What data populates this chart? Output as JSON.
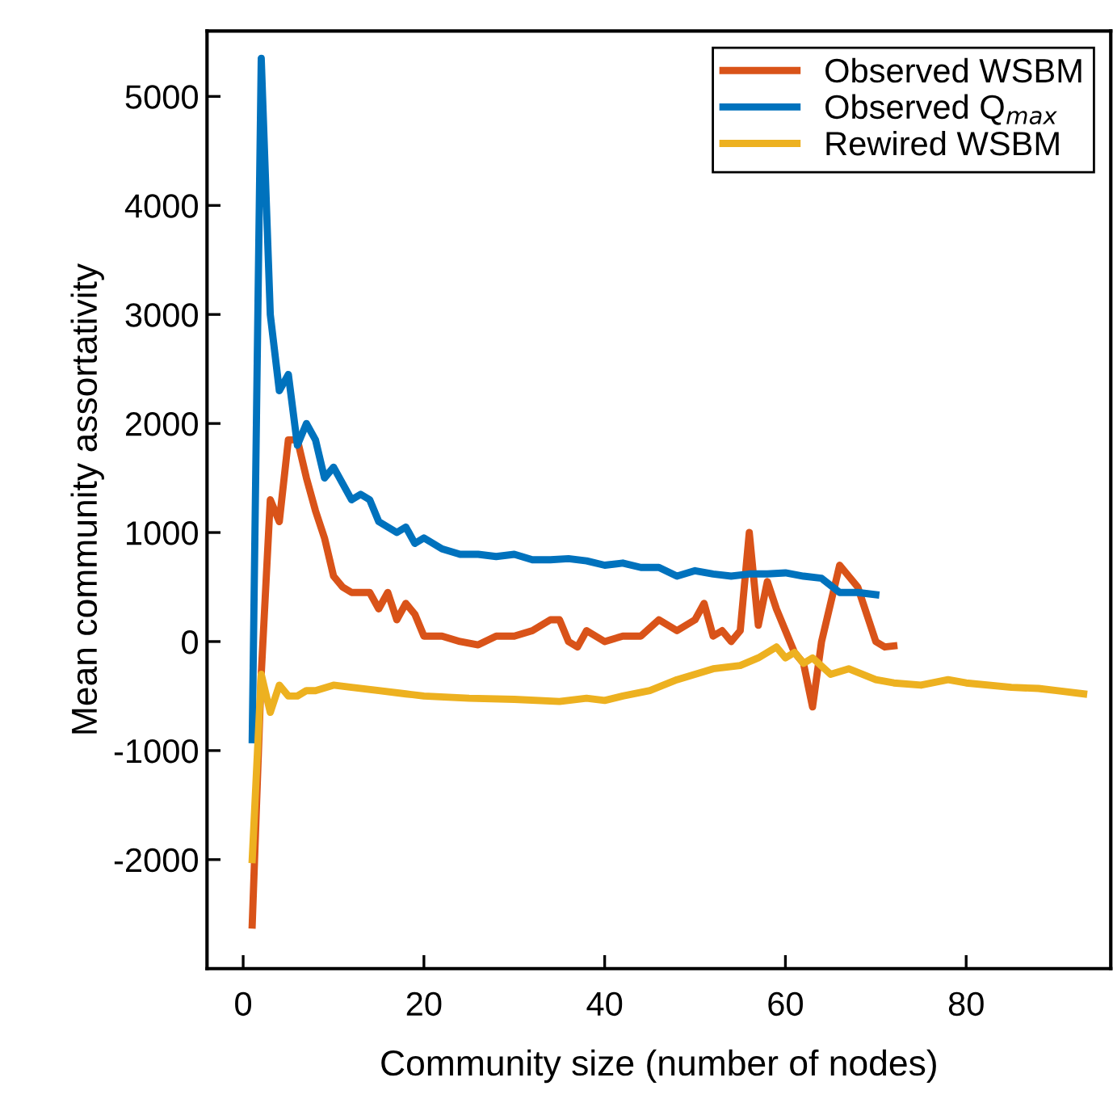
{
  "chart_data": {
    "type": "line",
    "xlabel": "Community size (number of nodes)",
    "ylabel": "Mean community assortativity",
    "xlim": [
      -4,
      96
    ],
    "xticks": [
      0,
      20,
      40,
      60,
      80
    ],
    "ylim": [
      -3000,
      5600
    ],
    "yticks": [
      -2000,
      -1000,
      0,
      1000,
      2000,
      3000,
      4000,
      5000
    ],
    "grid": false,
    "legend": "top right",
    "marker": "none",
    "line_style": "solid",
    "series": [
      {
        "name": "Observed WSBM",
        "color": "#d95319",
        "x": [
          1,
          2,
          3,
          4,
          5,
          6,
          7,
          8,
          9,
          10,
          11,
          12,
          13,
          14,
          15,
          16,
          17,
          18,
          19,
          20,
          22,
          24,
          26,
          28,
          30,
          32,
          34,
          35,
          36,
          37,
          38,
          40,
          42,
          44,
          46,
          47,
          48,
          50,
          51,
          52,
          53,
          54,
          55,
          56,
          57,
          58,
          59,
          60,
          61,
          62,
          63,
          64,
          66,
          68,
          70,
          71,
          72
        ],
        "values": [
          -2600,
          -300,
          1300,
          1100,
          1850,
          1850,
          1500,
          1200,
          950,
          600,
          500,
          450,
          450,
          450,
          300,
          450,
          200,
          350,
          250,
          50,
          50,
          0,
          -30,
          50,
          50,
          100,
          200,
          200,
          0,
          -50,
          100,
          0,
          50,
          50,
          200,
          150,
          100,
          200,
          350,
          50,
          100,
          0,
          100,
          1000,
          150,
          550,
          300,
          100,
          -100,
          -200,
          -600,
          0,
          700,
          500,
          0,
          -50,
          -40
        ]
      },
      {
        "name": "Observed Q$_{max}$",
        "color": "#0072bd",
        "x": [
          1,
          2,
          3,
          4,
          5,
          6,
          7,
          8,
          9,
          10,
          11,
          12,
          13,
          14,
          15,
          16,
          17,
          18,
          19,
          20,
          22,
          24,
          26,
          28,
          30,
          32,
          34,
          36,
          38,
          40,
          42,
          44,
          46,
          48,
          50,
          52,
          54,
          56,
          58,
          60,
          62,
          64,
          66,
          68,
          70
        ],
        "values": [
          -900,
          5350,
          3000,
          2300,
          2450,
          1800,
          2000,
          1850,
          1500,
          1600,
          1450,
          1300,
          1350,
          1300,
          1100,
          1050,
          1000,
          1050,
          900,
          950,
          850,
          800,
          800,
          780,
          800,
          750,
          750,
          760,
          740,
          700,
          720,
          680,
          680,
          600,
          650,
          620,
          600,
          620,
          620,
          630,
          600,
          580,
          450,
          450,
          430
        ]
      },
      {
        "name": "Rewired WSBM",
        "color": "#edb120",
        "x": [
          1,
          2,
          3,
          4,
          5,
          6,
          7,
          8,
          10,
          12,
          15,
          18,
          20,
          25,
          30,
          35,
          38,
          40,
          42,
          45,
          48,
          50,
          52,
          55,
          57,
          58,
          59,
          60,
          61,
          62,
          63,
          65,
          67,
          70,
          72,
          75,
          78,
          80,
          85,
          88,
          90,
          93
        ],
        "values": [
          -2000,
          -300,
          -650,
          -400,
          -500,
          -500,
          -450,
          -450,
          -400,
          -420,
          -450,
          -480,
          -500,
          -520,
          -530,
          -550,
          -520,
          -540,
          -500,
          -450,
          -350,
          -300,
          -250,
          -220,
          -150,
          -100,
          -50,
          -150,
          -100,
          -200,
          -150,
          -300,
          -250,
          -350,
          -380,
          -400,
          -350,
          -380,
          -420,
          -430,
          -450,
          -480
        ]
      }
    ]
  }
}
